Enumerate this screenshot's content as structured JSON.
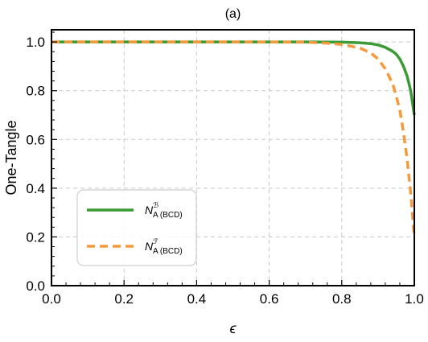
{
  "chart_data": {
    "type": "line",
    "title": "(a)",
    "xlabel": "ϵ",
    "ylabel": "One-Tangle",
    "xlim": [
      0,
      1
    ],
    "ylim": [
      0,
      1.05
    ],
    "xticks": [
      0.0,
      0.2,
      0.4,
      0.6,
      0.8,
      1.0
    ],
    "yticks": [
      0.0,
      0.2,
      0.4,
      0.6,
      0.8,
      1.0
    ],
    "xtick_labels": [
      "0.0",
      "0.2",
      "0.4",
      "0.6",
      "0.8",
      "1.0"
    ],
    "ytick_labels": [
      "0.0",
      "0.2",
      "0.4",
      "0.6",
      "0.8",
      "1.0"
    ],
    "grid": true,
    "legend_position": "lower-left",
    "series": [
      {
        "name": "N_{A(BCD)}^{B}",
        "legend_base": "N",
        "legend_sup": "ℬ",
        "legend_sub": "A (BCD)",
        "color": "#3a9a33",
        "style": "solid",
        "x": [
          0.0,
          0.5,
          0.7,
          0.8,
          0.85,
          0.88,
          0.9,
          0.92,
          0.94,
          0.95,
          0.96,
          0.97,
          0.98,
          0.99,
          1.0
        ],
        "y": [
          1.0,
          1.0,
          1.0,
          0.999,
          0.997,
          0.993,
          0.988,
          0.978,
          0.962,
          0.95,
          0.93,
          0.9,
          0.86,
          0.8,
          0.7
        ]
      },
      {
        "name": "N_{A(BCD)}^{F}",
        "legend_base": "N",
        "legend_sup": "ℱ",
        "legend_sub": "A (BCD)",
        "color": "#f59a3c",
        "style": "dashed",
        "x": [
          0.0,
          0.5,
          0.7,
          0.75,
          0.8,
          0.85,
          0.88,
          0.9,
          0.92,
          0.94,
          0.95,
          0.96,
          0.97,
          0.98,
          0.99,
          1.0
        ],
        "y": [
          1.0,
          1.0,
          0.999,
          0.996,
          0.99,
          0.975,
          0.955,
          0.93,
          0.89,
          0.83,
          0.78,
          0.72,
          0.63,
          0.52,
          0.38,
          0.2
        ]
      }
    ]
  }
}
